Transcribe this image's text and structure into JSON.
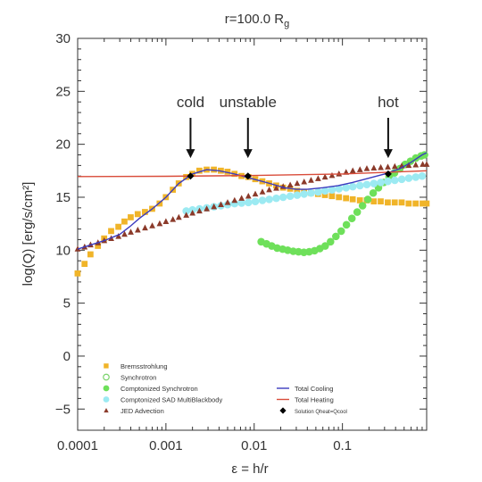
{
  "chart_data": {
    "type": "scatter",
    "title": "r=100.0 R",
    "title_subscript": "g",
    "xlabel": "ε = h/r",
    "ylabel": "log(Q) [erg/s/cm²]",
    "x_scale": "log",
    "xlim": [
      0.0001,
      0.9
    ],
    "ylim": [
      -7,
      30
    ],
    "x_ticks": [
      {
        "value": 0.0001,
        "label": "0.0001"
      },
      {
        "value": 0.001,
        "label": "0.001"
      },
      {
        "value": 0.01,
        "label": "0.01"
      },
      {
        "value": 0.1,
        "label": "0.1"
      }
    ],
    "y_ticks": [
      {
        "value": -5,
        "label": "−5"
      },
      {
        "value": 0,
        "label": "0"
      },
      {
        "value": 5,
        "label": "5"
      },
      {
        "value": 10,
        "label": "10"
      },
      {
        "value": 15,
        "label": "15"
      },
      {
        "value": 20,
        "label": "20"
      },
      {
        "value": 25,
        "label": "25"
      },
      {
        "value": 30,
        "label": "30"
      }
    ],
    "grid": false,
    "legend_position": "bottom",
    "annotations": [
      {
        "label": "cold",
        "x": 0.0019,
        "y_arrow_start": 22.5,
        "y_arrow_end": 18.7
      },
      {
        "label": "unstable",
        "x": 0.0085,
        "y_arrow_start": 22.5,
        "y_arrow_end": 18.7
      },
      {
        "label": "hot",
        "x": 0.33,
        "y_arrow_start": 22.5,
        "y_arrow_end": 18.7
      }
    ],
    "series": [
      {
        "name": "Bremsstrohlung",
        "marker": "square",
        "color": "#f0b429",
        "points": [
          [
            0.0001,
            7.8
          ],
          [
            0.00012,
            8.7
          ],
          [
            0.00014,
            9.6
          ],
          [
            0.00017,
            10.4
          ],
          [
            0.0002,
            11.1
          ],
          [
            0.00024,
            11.8
          ],
          [
            0.00029,
            12.2
          ],
          [
            0.00034,
            12.7
          ],
          [
            0.0004,
            13.1
          ],
          [
            0.00048,
            13.4
          ],
          [
            0.00058,
            13.6
          ],
          [
            0.0007,
            13.9
          ],
          [
            0.00085,
            14.4
          ],
          [
            0.001,
            15.0
          ],
          [
            0.0012,
            15.7
          ],
          [
            0.0014,
            16.3
          ],
          [
            0.0017,
            16.9
          ],
          [
            0.002,
            17.2
          ],
          [
            0.0024,
            17.5
          ],
          [
            0.0029,
            17.6
          ],
          [
            0.0035,
            17.6
          ],
          [
            0.0042,
            17.5
          ],
          [
            0.005,
            17.4
          ],
          [
            0.006,
            17.2
          ],
          [
            0.0072,
            17.0
          ],
          [
            0.0086,
            16.9
          ],
          [
            0.0103,
            16.7
          ],
          [
            0.0124,
            16.5
          ],
          [
            0.0148,
            16.3
          ],
          [
            0.0178,
            16.1
          ],
          [
            0.0213,
            15.9
          ],
          [
            0.0256,
            15.8
          ],
          [
            0.0307,
            15.6
          ],
          [
            0.0368,
            15.5
          ],
          [
            0.0441,
            15.4
          ],
          [
            0.053,
            15.3
          ],
          [
            0.0635,
            15.2
          ],
          [
            0.0762,
            15.1
          ],
          [
            0.0914,
            15.0
          ],
          [
            0.11,
            14.9
          ],
          [
            0.131,
            14.8
          ],
          [
            0.158,
            14.7
          ],
          [
            0.189,
            14.7
          ],
          [
            0.227,
            14.6
          ],
          [
            0.272,
            14.6
          ],
          [
            0.327,
            14.5
          ],
          [
            0.392,
            14.5
          ],
          [
            0.47,
            14.5
          ],
          [
            0.564,
            14.4
          ],
          [
            0.677,
            14.4
          ],
          [
            0.812,
            14.4
          ],
          [
            0.9,
            14.4
          ]
        ]
      },
      {
        "name": "Synchrotron",
        "marker": "open-circle",
        "color": "#7ad36b",
        "points": []
      },
      {
        "name": "Comptonized Synchrotron",
        "marker": "circle",
        "color": "#6ee05a",
        "points": [
          [
            0.012,
            10.8
          ],
          [
            0.0138,
            10.6
          ],
          [
            0.0158,
            10.4
          ],
          [
            0.0182,
            10.2
          ],
          [
            0.021,
            10.1
          ],
          [
            0.024,
            10.0
          ],
          [
            0.0277,
            9.9
          ],
          [
            0.0318,
            9.85
          ],
          [
            0.0366,
            9.8
          ],
          [
            0.042,
            9.85
          ],
          [
            0.0483,
            9.95
          ],
          [
            0.0555,
            10.15
          ],
          [
            0.0638,
            10.4
          ],
          [
            0.0733,
            10.8
          ],
          [
            0.0843,
            11.3
          ],
          [
            0.0968,
            11.8
          ],
          [
            0.111,
            12.4
          ],
          [
            0.128,
            13.0
          ],
          [
            0.147,
            13.6
          ],
          [
            0.169,
            14.2
          ],
          [
            0.194,
            14.8
          ],
          [
            0.223,
            15.4
          ],
          [
            0.256,
            15.9
          ],
          [
            0.294,
            16.4
          ],
          [
            0.338,
            16.9
          ],
          [
            0.389,
            17.3
          ],
          [
            0.447,
            17.7
          ],
          [
            0.514,
            18.1
          ],
          [
            0.59,
            18.4
          ],
          [
            0.678,
            18.7
          ],
          [
            0.78,
            18.9
          ],
          [
            0.85,
            19.0
          ]
        ]
      },
      {
        "name": "Comptonized SAD MultiBlackbody",
        "marker": "circle",
        "color": "#9ceaf2",
        "points": [
          [
            0.0017,
            13.7
          ],
          [
            0.002,
            13.8
          ],
          [
            0.0024,
            13.9
          ],
          [
            0.0029,
            14.0
          ],
          [
            0.0035,
            14.1
          ],
          [
            0.0042,
            14.2
          ],
          [
            0.005,
            14.3
          ],
          [
            0.006,
            14.4
          ],
          [
            0.0072,
            14.45
          ],
          [
            0.0086,
            14.5
          ],
          [
            0.0103,
            14.6
          ],
          [
            0.0124,
            14.7
          ],
          [
            0.0148,
            14.8
          ],
          [
            0.0178,
            14.9
          ],
          [
            0.0213,
            15.0
          ],
          [
            0.0256,
            15.1
          ],
          [
            0.0307,
            15.2
          ],
          [
            0.0368,
            15.3
          ],
          [
            0.0441,
            15.4
          ],
          [
            0.053,
            15.5
          ],
          [
            0.0635,
            15.6
          ],
          [
            0.0762,
            15.7
          ],
          [
            0.0914,
            15.8
          ],
          [
            0.11,
            15.9
          ],
          [
            0.131,
            16.0
          ],
          [
            0.158,
            16.1
          ],
          [
            0.189,
            16.2
          ],
          [
            0.227,
            16.3
          ],
          [
            0.272,
            16.4
          ],
          [
            0.327,
            16.5
          ],
          [
            0.392,
            16.6
          ],
          [
            0.47,
            16.7
          ],
          [
            0.564,
            16.8
          ],
          [
            0.677,
            16.9
          ],
          [
            0.8,
            17.0
          ]
        ]
      },
      {
        "name": "JED Advection",
        "marker": "triangle",
        "color": "#8b3a2a",
        "points": [
          [
            0.0001,
            10.1
          ],
          [
            0.00012,
            10.3
          ],
          [
            0.00014,
            10.5
          ],
          [
            0.00017,
            10.7
          ],
          [
            0.0002,
            10.9
          ],
          [
            0.00024,
            11.1
          ],
          [
            0.00029,
            11.3
          ],
          [
            0.00034,
            11.5
          ],
          [
            0.0004,
            11.7
          ],
          [
            0.00048,
            11.9
          ],
          [
            0.00058,
            12.1
          ],
          [
            0.0007,
            12.3
          ],
          [
            0.00085,
            12.5
          ],
          [
            0.001,
            12.7
          ],
          [
            0.0012,
            12.9
          ],
          [
            0.0014,
            13.1
          ],
          [
            0.0017,
            13.3
          ],
          [
            0.002,
            13.5
          ],
          [
            0.0024,
            13.7
          ],
          [
            0.0029,
            13.9
          ],
          [
            0.0035,
            14.1
          ],
          [
            0.0042,
            14.3
          ],
          [
            0.005,
            14.5
          ],
          [
            0.006,
            14.7
          ],
          [
            0.0072,
            14.9
          ],
          [
            0.0086,
            15.1
          ],
          [
            0.0103,
            15.3
          ],
          [
            0.0124,
            15.5
          ],
          [
            0.0148,
            15.7
          ],
          [
            0.0178,
            15.85
          ],
          [
            0.0213,
            16.0
          ],
          [
            0.0256,
            16.15
          ],
          [
            0.0307,
            16.3
          ],
          [
            0.0368,
            16.45
          ],
          [
            0.0441,
            16.6
          ],
          [
            0.053,
            16.75
          ],
          [
            0.0635,
            16.9
          ],
          [
            0.0762,
            17.05
          ],
          [
            0.0914,
            17.2
          ],
          [
            0.11,
            17.35
          ],
          [
            0.131,
            17.5
          ],
          [
            0.158,
            17.6
          ],
          [
            0.189,
            17.7
          ],
          [
            0.227,
            17.75
          ],
          [
            0.272,
            17.8
          ],
          [
            0.327,
            17.85
          ],
          [
            0.392,
            17.9
          ],
          [
            0.47,
            17.95
          ],
          [
            0.564,
            18.0
          ],
          [
            0.677,
            18.05
          ],
          [
            0.812,
            18.1
          ],
          [
            0.9,
            18.1
          ]
        ]
      }
    ],
    "lines": [
      {
        "name": "Total Cooling",
        "color": "#3b3bbf",
        "points": [
          [
            0.0001,
            10.1
          ],
          [
            0.0002,
            10.9
          ],
          [
            0.0003,
            11.5
          ],
          [
            0.0004,
            12.3
          ],
          [
            0.0005,
            13.0
          ],
          [
            0.0007,
            13.9
          ],
          [
            0.001,
            15.0
          ],
          [
            0.0014,
            16.3
          ],
          [
            0.002,
            17.2
          ],
          [
            0.0029,
            17.6
          ],
          [
            0.004,
            17.5
          ],
          [
            0.006,
            17.2
          ],
          [
            0.01,
            16.7
          ],
          [
            0.015,
            16.3
          ],
          [
            0.022,
            15.9
          ],
          [
            0.03,
            15.75
          ],
          [
            0.04,
            15.75
          ],
          [
            0.06,
            15.9
          ],
          [
            0.09,
            16.1
          ],
          [
            0.13,
            16.4
          ],
          [
            0.2,
            16.8
          ],
          [
            0.3,
            17.2
          ],
          [
            0.45,
            17.7
          ],
          [
            0.6,
            18.3
          ],
          [
            0.8,
            19.0
          ],
          [
            0.9,
            19.2
          ]
        ]
      },
      {
        "name": "Total Heating",
        "color": "#d94c3a",
        "points": [
          [
            0.0001,
            16.95
          ],
          [
            0.001,
            16.98
          ],
          [
            0.01,
            17.05
          ],
          [
            0.1,
            17.2
          ],
          [
            0.9,
            17.5
          ]
        ]
      }
    ],
    "solutions": {
      "name": "Solution Qheat=Qcool",
      "marker": "diamond",
      "color": "#000000",
      "points": [
        [
          0.0019,
          17.0
        ],
        [
          0.0085,
          17.0
        ],
        [
          0.33,
          17.2
        ]
      ]
    }
  }
}
